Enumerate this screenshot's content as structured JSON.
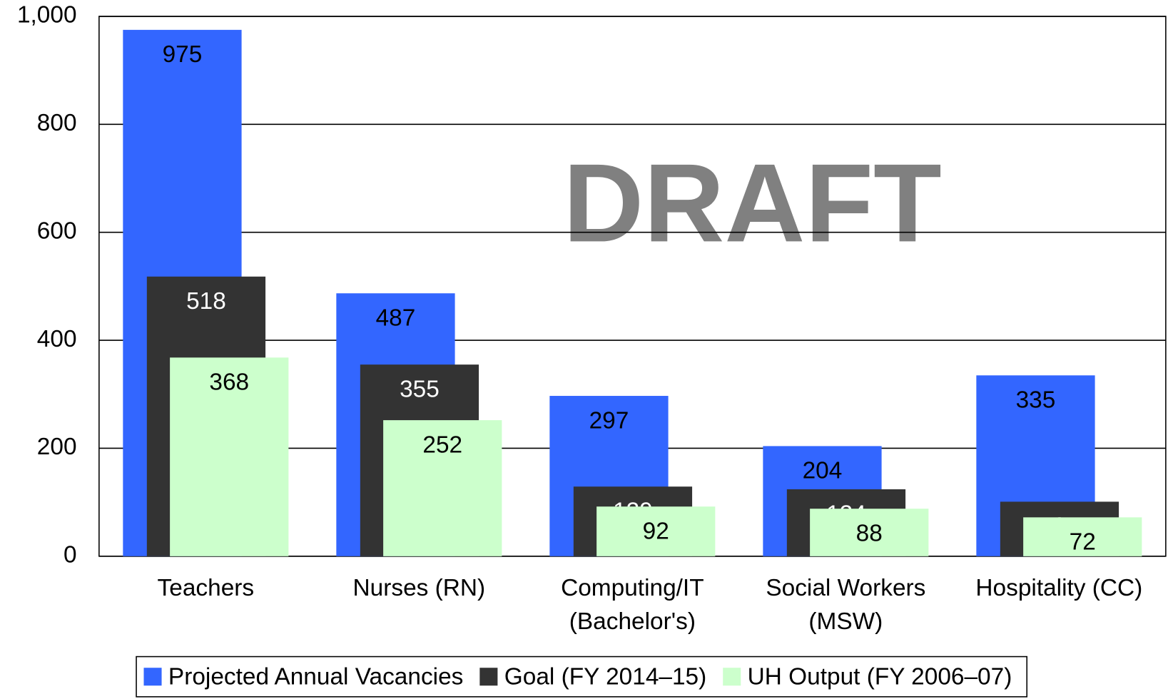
{
  "chart_data": {
    "type": "bar",
    "watermark": "DRAFT",
    "categories": [
      "Teachers",
      "Nurses (RN)",
      "Computing/IT (Bachelor's)",
      "Social Workers (MSW)",
      "Hospitality (CC)"
    ],
    "series": [
      {
        "name": "Projected Annual Vacancies",
        "color": "#3366ff",
        "label_color": "#000000",
        "values": [
          975,
          487,
          297,
          204,
          335
        ]
      },
      {
        "name": "Goal (FY 2014–15)",
        "color": "#333333",
        "label_color": "#ffffff",
        "values": [
          518,
          355,
          129,
          124,
          101
        ]
      },
      {
        "name": "UH Output (FY 2006–07)",
        "color": "#ccffcc",
        "label_color": "#000000",
        "values": [
          368,
          252,
          92,
          88,
          72
        ]
      }
    ],
    "ylim": [
      0,
      1000
    ],
    "yticks": [
      0,
      200,
      400,
      600,
      800,
      {
        "value": 1000,
        "label": "1,000"
      }
    ],
    "grid": true,
    "legend": "bottom"
  }
}
